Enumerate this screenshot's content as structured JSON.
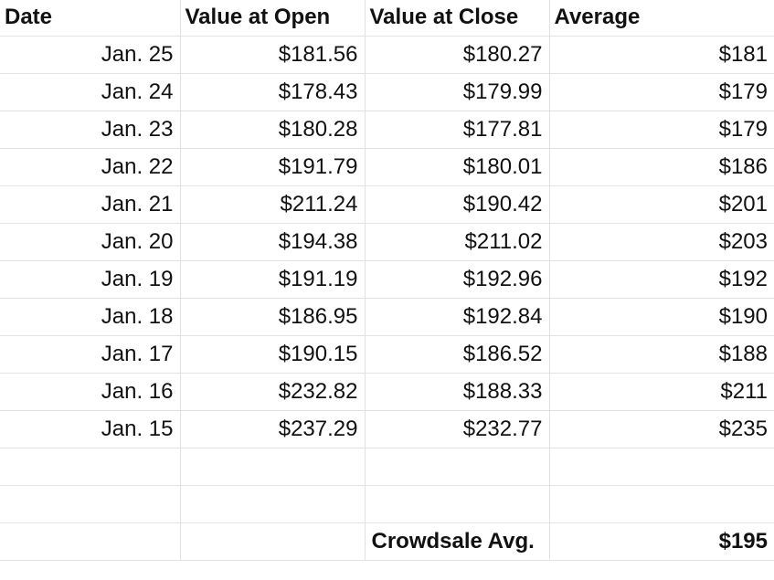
{
  "headers": {
    "date": "Date",
    "open": "Value at Open",
    "close": "Value at Close",
    "average": "Average"
  },
  "rows": [
    {
      "date": "Jan. 25",
      "open": "$181.56",
      "close": "$180.27",
      "average": "$181"
    },
    {
      "date": "Jan. 24",
      "open": "$178.43",
      "close": "$179.99",
      "average": "$179"
    },
    {
      "date": "Jan. 23",
      "open": "$180.28",
      "close": "$177.81",
      "average": "$179"
    },
    {
      "date": "Jan. 22",
      "open": "$191.79",
      "close": "$180.01",
      "average": "$186"
    },
    {
      "date": "Jan. 21",
      "open": "$211.24",
      "close": "$190.42",
      "average": "$201"
    },
    {
      "date": "Jan. 20",
      "open": "$194.38",
      "close": "$211.02",
      "average": "$203"
    },
    {
      "date": "Jan. 19",
      "open": "$191.19",
      "close": "$192.96",
      "average": "$192"
    },
    {
      "date": "Jan. 18",
      "open": "$186.95",
      "close": "$192.84",
      "average": "$190"
    },
    {
      "date": "Jan. 17",
      "open": "$190.15",
      "close": "$186.52",
      "average": "$188"
    },
    {
      "date": "Jan. 16",
      "open": "$232.82",
      "close": "$188.33",
      "average": "$211"
    },
    {
      "date": "Jan. 15",
      "open": "$237.29",
      "close": "$232.77",
      "average": "$235"
    }
  ],
  "summary": {
    "label": "Crowdsale Avg.",
    "value": "$195"
  }
}
